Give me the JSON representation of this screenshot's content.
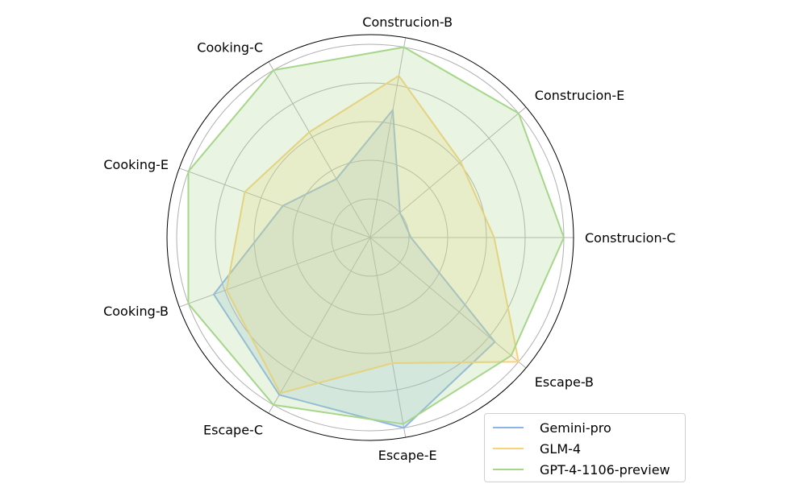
{
  "chart_data": {
    "type": "radar",
    "title": "",
    "categories": [
      "Construcion-C",
      "Construcion-E",
      "Construcion-B",
      "Cooking-C",
      "Cooking-E",
      "Cooking-B",
      "Escape-C",
      "Escape-E",
      "Escape-B"
    ],
    "series": [
      {
        "name": "Gemini-pro",
        "color": "#8fb5e8",
        "values": [
          0.21,
          0.2,
          0.67,
          0.35,
          0.48,
          0.86,
          0.94,
          1.0,
          0.84
        ]
      },
      {
        "name": "GLM-4",
        "color": "#f9d27a",
        "values": [
          0.64,
          0.61,
          0.85,
          0.63,
          0.69,
          0.79,
          0.93,
          0.66,
          1.0
        ]
      },
      {
        "name": "GPT-4-1106-preview",
        "color": "#a6d68a",
        "values": [
          1.0,
          1.0,
          1.0,
          1.0,
          1.0,
          1.0,
          1.0,
          0.98,
          0.95
        ]
      }
    ],
    "rlim": [
      0,
      1.05
    ],
    "rticks": [
      0.2,
      0.4,
      0.6,
      0.8,
      1.0
    ],
    "rtick_labels_visible": false,
    "grid": true,
    "legend_position": "lower right",
    "fill_alpha": 0.25
  },
  "legend": {
    "items": [
      {
        "label": "Gemini-pro",
        "color": "#8fb5e8"
      },
      {
        "label": "GLM-4",
        "color": "#f9d27a"
      },
      {
        "label": "GPT-4-1106-preview",
        "color": "#a6d68a"
      }
    ]
  }
}
